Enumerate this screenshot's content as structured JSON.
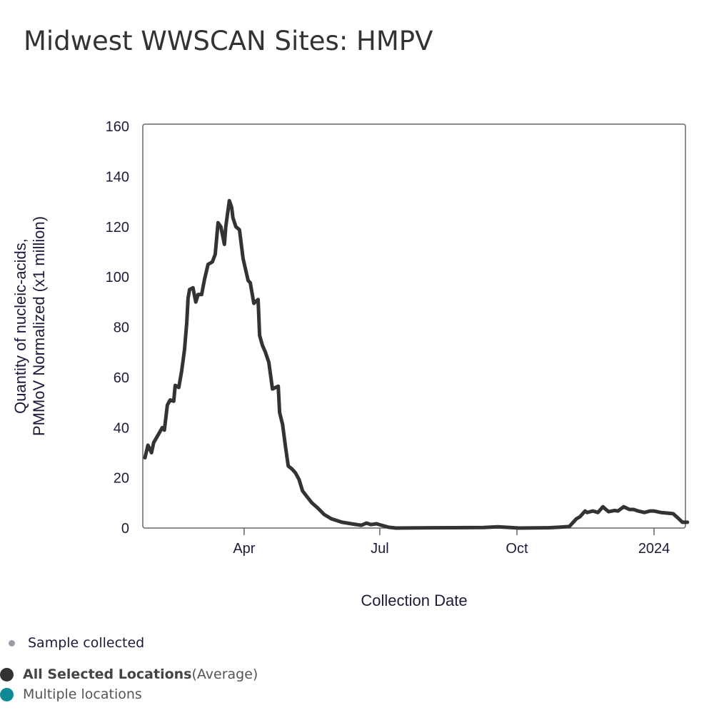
{
  "title": "Midwest WWSCAN Sites: HMPV",
  "legend": {
    "sample": {
      "label": "Sample collected",
      "color": "#9a9ea8"
    },
    "series": [
      {
        "label_bold": "All Selected Locations",
        "label_rest": " (Average)",
        "color": "#333333"
      },
      {
        "label_bold": "",
        "label_rest": "Multiple locations",
        "color": "#0e8a96"
      }
    ]
  },
  "chart_data": {
    "type": "line",
    "title": "Midwest WWSCAN Sites: HMPV",
    "xlabel": "Collection Date",
    "ylabel_lines": [
      "Quantity of nucleic-acids,",
      "PMMoV Normalized (x1 million)"
    ],
    "ylim": [
      0,
      160
    ],
    "yticks": [
      0,
      20,
      40,
      60,
      80,
      100,
      120,
      140,
      160
    ],
    "xlim_days_since_2023_01_01": [
      23,
      387
    ],
    "xticks": [
      {
        "label": "Apr",
        "day": 90
      },
      {
        "label": "Jul",
        "day": 181
      },
      {
        "label": "Oct",
        "day": 273
      },
      {
        "label": "2024",
        "day": 365
      }
    ],
    "grid": false,
    "legend_position": "bottom-left",
    "series": [
      {
        "name": "All Selected Locations (Average)",
        "color": "#333333",
        "x_unit": "days since 2023-01-01",
        "x": [
          23.5,
          25.5,
          27.9,
          29.3,
          32.7,
          35.1,
          36.5,
          38.5,
          40.4,
          42.8,
          43.8,
          46.2,
          48.1,
          50,
          51.5,
          52.4,
          53.4,
          55.7,
          57.6,
          59.1,
          61.5,
          63.4,
          65.8,
          68.7,
          70.6,
          72.5,
          74.4,
          76.8,
          77.7,
          80.1,
          81.6,
          82.5,
          84.5,
          86.9,
          89.3,
          92.7,
          94.1,
          96.5,
          99.4,
          100.4,
          102.3,
          104.2,
          106.6,
          109,
          112.9,
          113.8,
          115.8,
          117.7,
          119.6,
          122,
          124.4,
          126.9,
          129.2,
          132.6,
          135.5,
          139.4,
          143.7,
          148.5,
          155.7,
          165.3,
          168.7,
          172.1,
          175,
          178.8,
          182.2,
          187,
          191.8,
          215.7,
          250.6,
          260.2,
          274.6,
          293.7,
          300.9,
          308.1,
          312.9,
          315.3,
          318.7,
          320.1,
          324,
          327.3,
          330.7,
          332.1,
          334.5,
          338.4,
          340.8,
          344.6,
          348.5,
          351.3,
          354.2,
          358.5,
          362.4,
          364.8,
          369.6,
          373,
          377.8,
          381.6,
          384,
          387.4
        ],
        "values": [
          28,
          33,
          30,
          34,
          37.5,
          40,
          39,
          49,
          51,
          50.5,
          56.8,
          56,
          62.5,
          71,
          81.5,
          91.5,
          95,
          95.7,
          90,
          93,
          93,
          99,
          105,
          106,
          109,
          121.6,
          120,
          113,
          120,
          130.4,
          127.8,
          123.6,
          120,
          118.8,
          107.4,
          98.6,
          97.7,
          89.5,
          91,
          76.7,
          72.7,
          70.2,
          66,
          55.4,
          56.5,
          46,
          41.2,
          32.7,
          24.7,
          23.6,
          22,
          19.3,
          14.8,
          12.2,
          10,
          8,
          5.4,
          3.7,
          2.3,
          1.4,
          1.1,
          2,
          1.4,
          1.7,
          1.1,
          0.3,
          0,
          0.1,
          0.2,
          0.5,
          0,
          0.1,
          0.3,
          0.6,
          3.7,
          4.5,
          6.8,
          6.2,
          6.8,
          6.2,
          8.5,
          7.7,
          6.5,
          7,
          6.8,
          8.5,
          7.4,
          7.4,
          6.8,
          6.2,
          6.8,
          6.8,
          6.2,
          6,
          5.7,
          3.7,
          2.3,
          2.3
        ]
      }
    ]
  }
}
